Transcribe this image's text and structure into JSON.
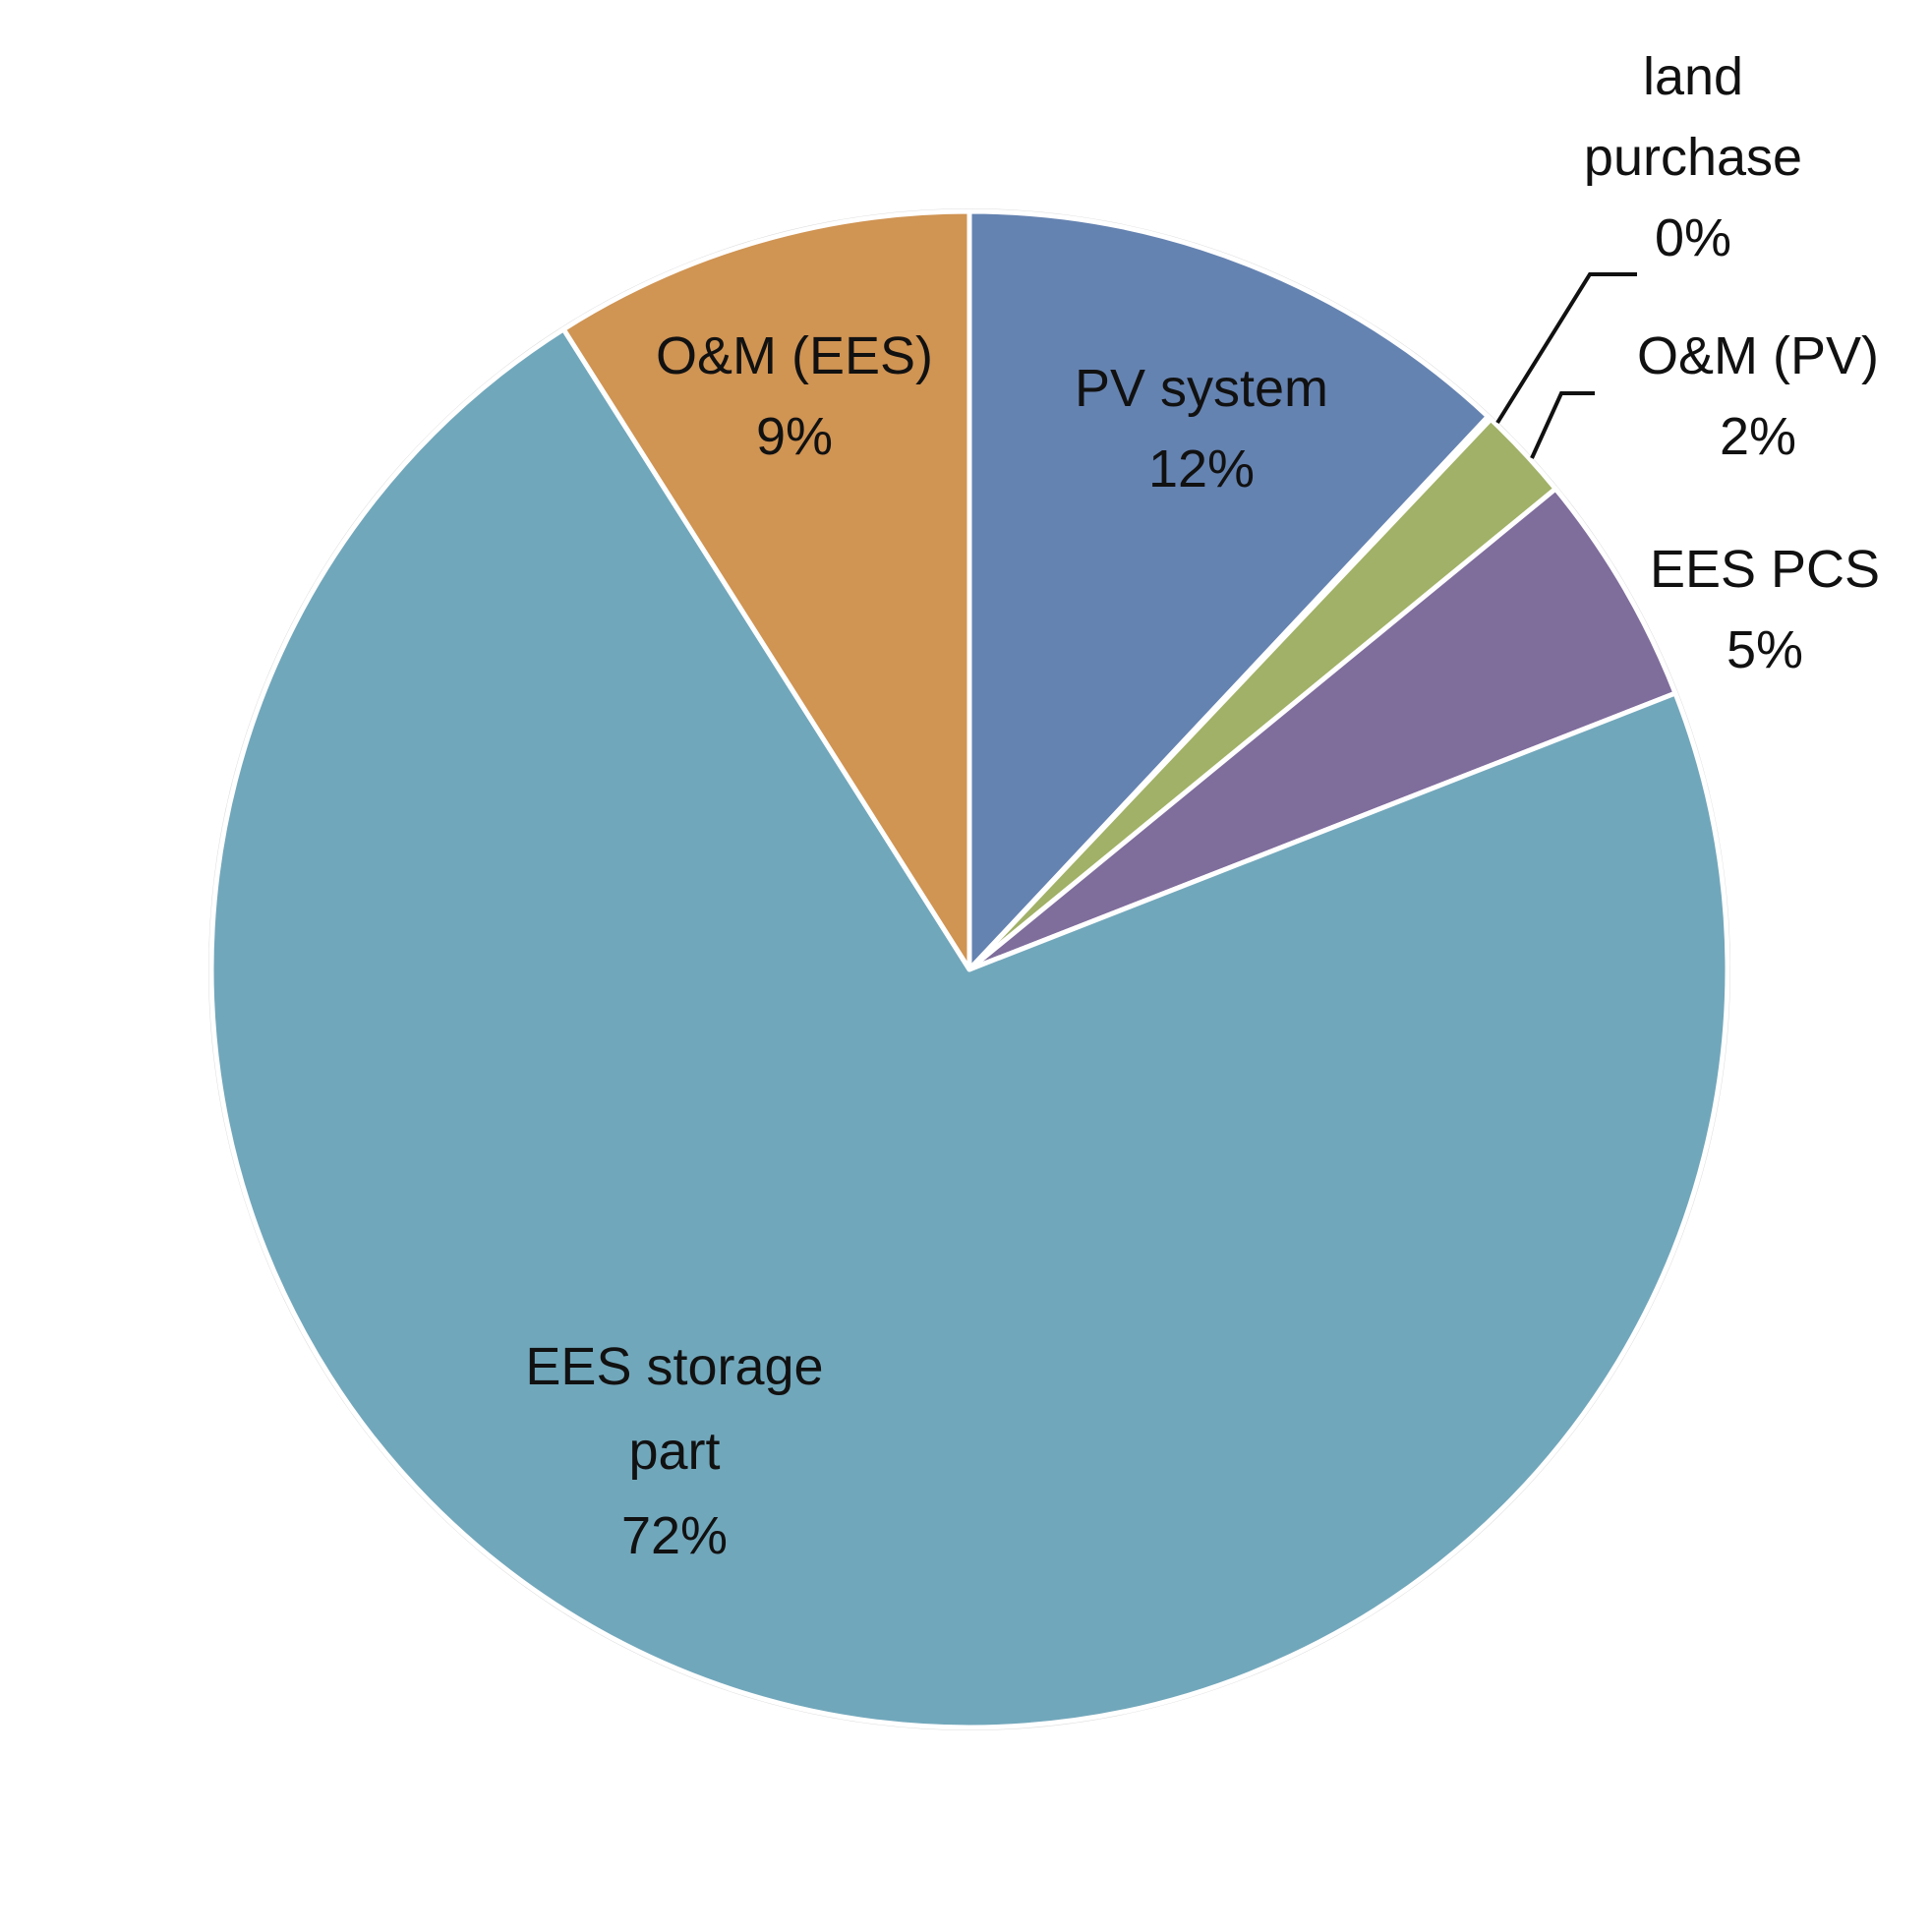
{
  "chart_data": {
    "type": "pie",
    "title": "",
    "slices": [
      {
        "name": "PV system",
        "label_lines": [
          "PV system",
          "12%"
        ],
        "value": 12,
        "color": "#6583b1"
      },
      {
        "name": "land purchase",
        "label_lines": [
          "land",
          "purchase",
          "0%"
        ],
        "value": 0.08,
        "color": "#4c7dbb"
      },
      {
        "name": "O&M (PV)",
        "label_lines": [
          "O&M (PV)",
          "2%"
        ],
        "value": 2,
        "color": "#a1b167"
      },
      {
        "name": "EES PCS",
        "label_lines": [
          "EES PCS",
          "5%"
        ],
        "value": 5,
        "color": "#7f6d9c"
      },
      {
        "name": "EES storage part",
        "label_lines": [
          "EES storage",
          "part",
          "72%"
        ],
        "value": 72,
        "color": "#71a7bb"
      },
      {
        "name": "O&M (EES)",
        "label_lines": [
          "O&M (EES)",
          "9%"
        ],
        "value": 9,
        "color": "#d09453"
      }
    ],
    "legend": "none",
    "data_labels": "category name and percentage"
  }
}
